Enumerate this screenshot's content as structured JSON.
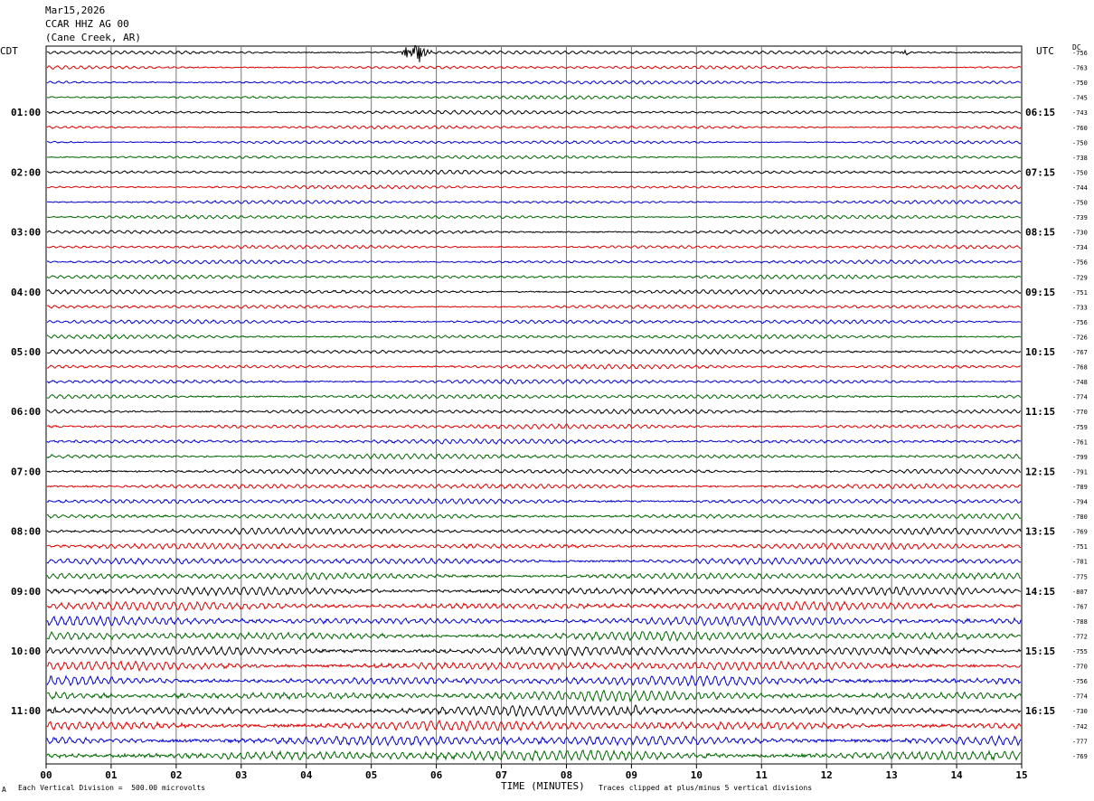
{
  "header": {
    "date": "Mar15,2026",
    "station": "CCAR HHZ AG 00",
    "location": "(Cane Creek, AR)"
  },
  "left_tz": "CDT",
  "right_tz": "UTC",
  "dc_label": "DC",
  "footer": {
    "mark": "A",
    "scale": "Each Vertical Division =  500.00 microvolts",
    "xaxis": "TIME (MINUTES)",
    "clip": "Traces clipped at plus/minus 5 vertical divisions"
  },
  "chart_data": {
    "type": "line",
    "xlabel": "TIME (MINUTES)",
    "xlim": [
      0,
      15
    ],
    "x_ticks": [
      "00",
      "01",
      "02",
      "03",
      "04",
      "05",
      "06",
      "07",
      "08",
      "09",
      "10",
      "11",
      "12",
      "13",
      "14",
      "15"
    ],
    "trace_colors": [
      "#000000",
      "#dd0000",
      "#0000cc",
      "#006600"
    ],
    "trace_minutes": 15,
    "left_time_labels": [
      {
        "row": 0,
        "label": ""
      },
      {
        "row": 4,
        "label": "01:00"
      },
      {
        "row": 8,
        "label": "02:00"
      },
      {
        "row": 12,
        "label": "03:00"
      },
      {
        "row": 16,
        "label": "04:00"
      },
      {
        "row": 20,
        "label": "05:00"
      },
      {
        "row": 24,
        "label": "06:00"
      },
      {
        "row": 28,
        "label": "07:00"
      },
      {
        "row": 32,
        "label": "08:00"
      },
      {
        "row": 36,
        "label": "09:00"
      },
      {
        "row": 40,
        "label": "10:00"
      },
      {
        "row": 44,
        "label": "11:00"
      }
    ],
    "right_time_labels": [
      {
        "row": 4,
        "label": "06:15"
      },
      {
        "row": 8,
        "label": "07:15"
      },
      {
        "row": 12,
        "label": "08:15"
      },
      {
        "row": 16,
        "label": "09:15"
      },
      {
        "row": 20,
        "label": "10:15"
      },
      {
        "row": 24,
        "label": "11:15"
      },
      {
        "row": 28,
        "label": "12:15"
      },
      {
        "row": 32,
        "label": "13:15"
      },
      {
        "row": 36,
        "label": "14:15"
      },
      {
        "row": 40,
        "label": "15:15"
      },
      {
        "row": 44,
        "label": "16:15"
      }
    ],
    "dc_offsets": [
      "-756",
      "-763",
      "-750",
      "-745",
      "-743",
      "-760",
      "-750",
      "-738",
      "-750",
      "-744",
      "-750",
      "-739",
      "-730",
      "-734",
      "-756",
      "-729",
      "-751",
      "-733",
      "-756",
      "-726",
      "-767",
      "-768",
      "-748",
      "-774",
      "-770",
      "-759",
      "-761",
      "-799",
      "-791",
      "-789",
      "-794",
      "-780",
      "-769",
      "-751",
      "-781",
      "-775",
      "-807",
      "-767",
      "-788",
      "-772",
      "-755",
      "-770",
      "-756",
      "-774",
      "-730",
      "-742",
      "-777",
      "-769"
    ],
    "trace_noise": [
      0.8,
      0.7,
      0.7,
      0.7,
      0.8,
      0.7,
      0.7,
      0.7,
      0.8,
      0.7,
      0.7,
      0.75,
      0.8,
      0.75,
      0.75,
      0.8,
      0.9,
      0.8,
      0.85,
      0.85,
      0.95,
      0.9,
      0.9,
      0.95,
      1.0,
      1.0,
      1.0,
      1.05,
      1.1,
      1.1,
      1.15,
      1.15,
      1.3,
      1.3,
      1.4,
      1.45,
      1.7,
      1.8,
      1.9,
      1.9,
      2.0,
      2.0,
      2.0,
      2.1,
      2.1,
      2.2,
      2.2,
      2.3
    ],
    "events": [
      {
        "row": 0,
        "start_min": 5.45,
        "end_min": 6.15,
        "amplitude": 14
      },
      {
        "row": 0,
        "start_min": 13.05,
        "end_min": 13.5,
        "amplitude": 3
      },
      {
        "row": 44,
        "start_min": 8.9,
        "end_min": 9.2,
        "amplitude": 6
      },
      {
        "row": 44,
        "start_min": 0.0,
        "end_min": 0.3,
        "amplitude": 4
      }
    ]
  }
}
